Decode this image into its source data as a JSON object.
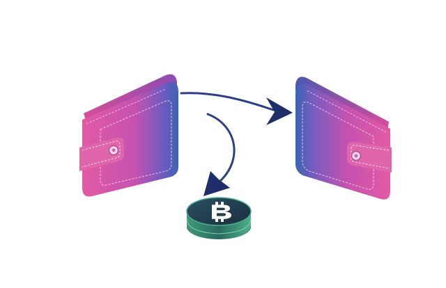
{
  "colors": {
    "background": "#ffffff",
    "wallet_pink": "#e0539f",
    "wallet_magenta": "#c94fb0",
    "wallet_blue": "#3f5fb0",
    "arrow_navy": "#1f2f6b",
    "coin_dark": "#1f3b4a",
    "coin_green": "#3fa27a"
  },
  "icons": {
    "left_wallet": "wallet-icon",
    "right_wallet": "wallet-icon",
    "coin": "bitcoin-coin-icon",
    "transfer_arrow": "arrow-right-icon",
    "fee_arrow": "arrow-down-icon"
  }
}
